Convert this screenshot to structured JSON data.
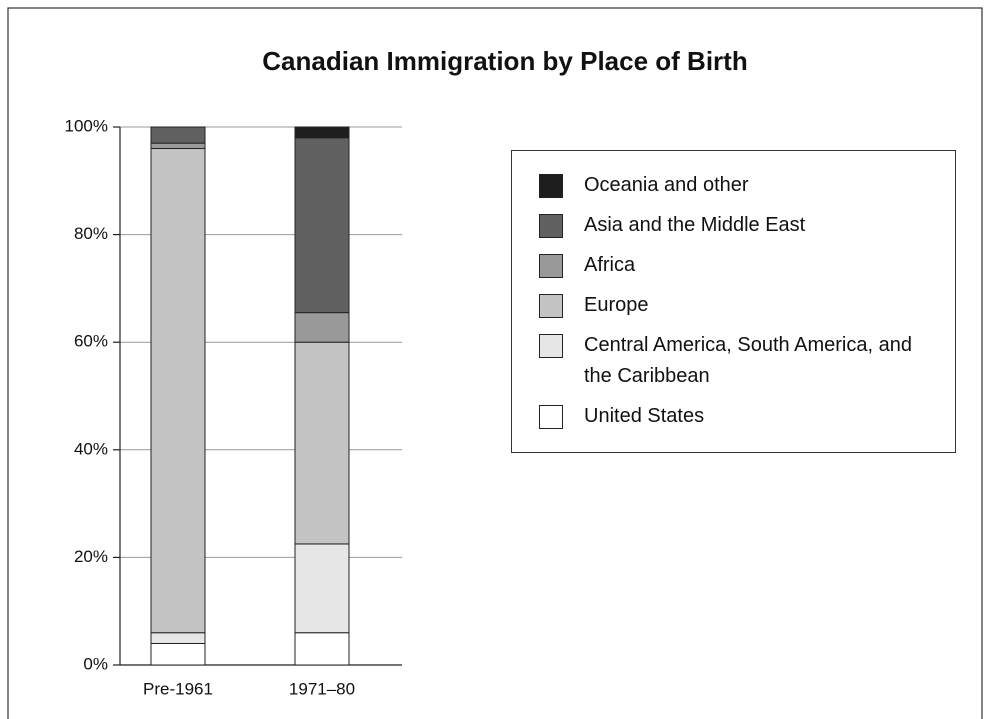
{
  "chart_data": {
    "type": "stacked_bar",
    "title": "Canadian Immigration by Place of Birth",
    "categories": [
      "Pre-1961",
      "1971–80"
    ],
    "series": [
      {
        "name": "United States",
        "color": "#ffffff",
        "values": [
          4,
          6
        ]
      },
      {
        "name": "Central America, South America, and the Caribbean",
        "color": "#e6e6e6",
        "values": [
          2,
          16.5
        ]
      },
      {
        "name": "Europe",
        "color": "#c4c4c4",
        "values": [
          90,
          37.5
        ]
      },
      {
        "name": "Africa",
        "color": "#999999",
        "values": [
          1,
          5.5
        ]
      },
      {
        "name": "Asia and the Middle East",
        "color": "#616161",
        "values": [
          3,
          32.5
        ]
      },
      {
        "name": "Oceania and other",
        "color": "#1e1e1e",
        "values": [
          0,
          2
        ]
      }
    ],
    "ylim": [
      0,
      100
    ],
    "yticks": [
      {
        "value": 0,
        "label": "0%"
      },
      {
        "value": 20,
        "label": "20%"
      },
      {
        "value": 40,
        "label": "40%"
      },
      {
        "value": 60,
        "label": "60%"
      },
      {
        "value": 80,
        "label": "80%"
      },
      {
        "value": 100,
        "label": "100%"
      }
    ],
    "grid": true
  }
}
